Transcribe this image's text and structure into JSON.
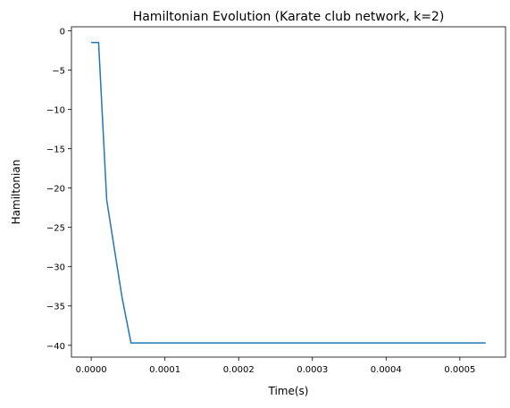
{
  "chart_data": {
    "type": "line",
    "title": "Hamiltonian Evolution (Karate club network, k=2)",
    "xlabel": "Time(s)",
    "ylabel": "Hamiltonian",
    "xlim": [
      -2.68e-05,
      0.000562
    ],
    "ylim": [
      -41.5,
      0.5
    ],
    "x_ticks": [
      0.0,
      0.0001,
      0.0002,
      0.0003,
      0.0004,
      0.0005
    ],
    "x_tick_labels": [
      "0.0000",
      "0.0001",
      "0.0002",
      "0.0003",
      "0.0004",
      "0.0005"
    ],
    "y_ticks": [
      0,
      -5,
      -10,
      -15,
      -20,
      -25,
      -30,
      -35,
      -40
    ],
    "y_tick_labels": [
      "0",
      "−5",
      "−10",
      "−15",
      "−20",
      "−25",
      "−30",
      "−35",
      "−40"
    ],
    "grid": false,
    "series": [
      {
        "color": "#1f77b4",
        "x": [
          0.0,
          1e-05,
          2.1e-05,
          3.1e-05,
          4.2e-05,
          5.4e-05,
          0.0001,
          0.0002,
          0.0003,
          0.0004,
          0.0005,
          0.000535
        ],
        "y": [
          -1.5,
          -1.5,
          -21.5,
          -27.5,
          -34.0,
          -39.7,
          -39.7,
          -39.7,
          -39.7,
          -39.7,
          -39.7,
          -39.7
        ]
      }
    ]
  }
}
